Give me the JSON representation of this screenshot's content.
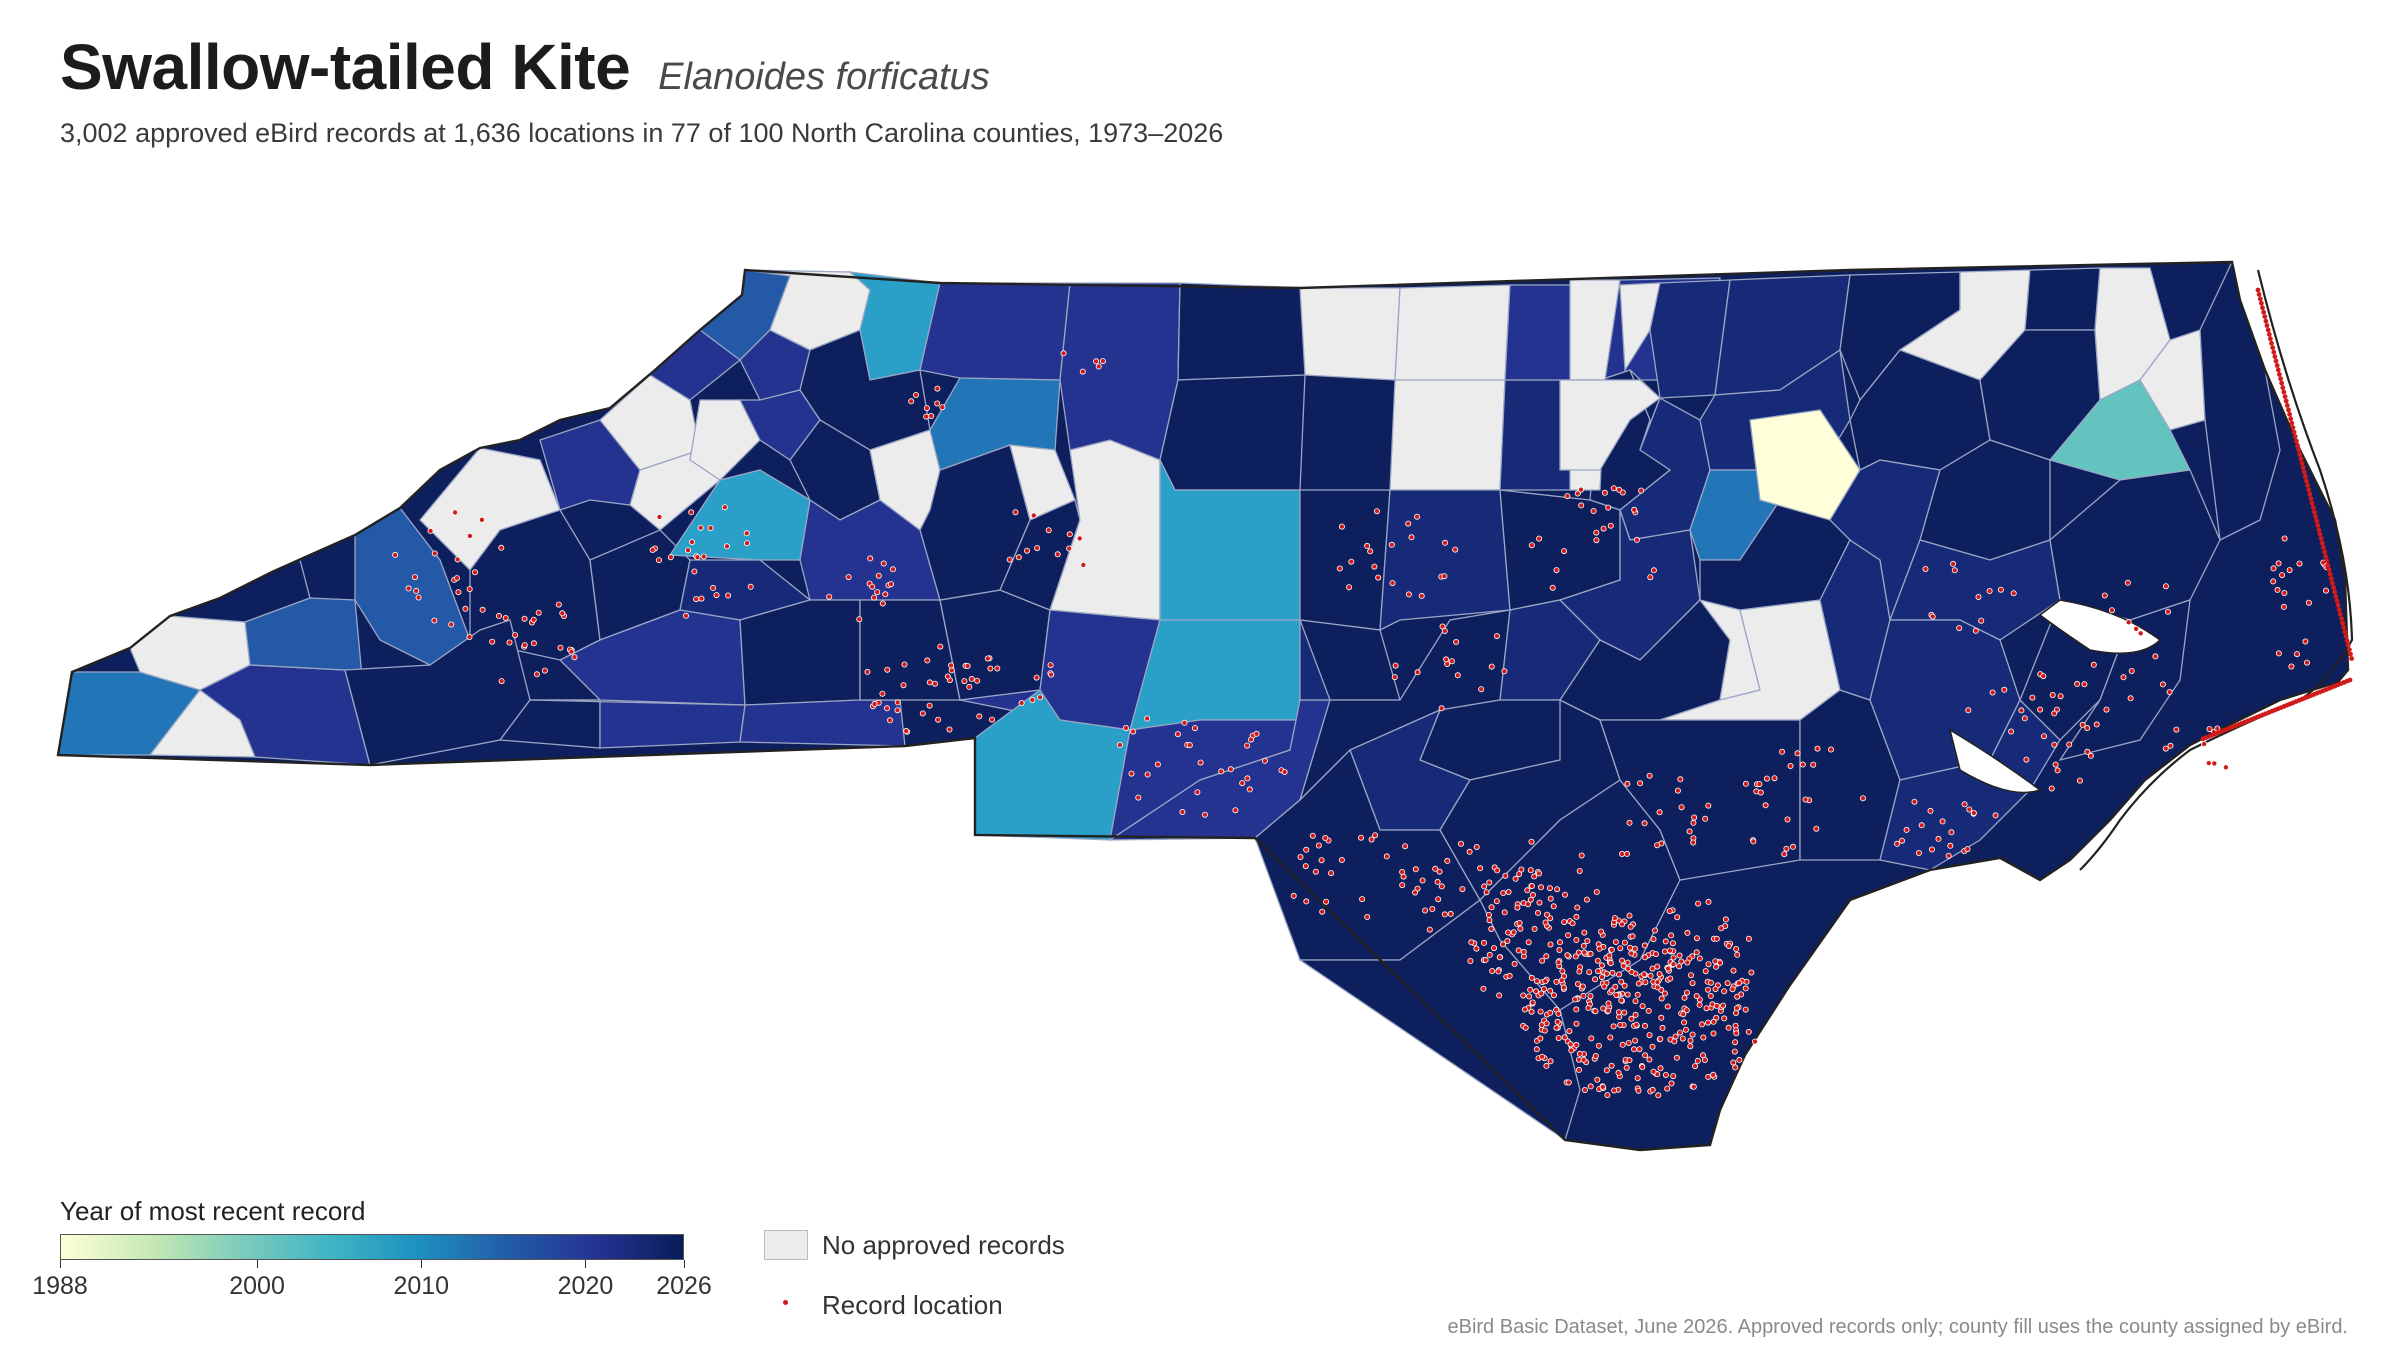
{
  "header": {
    "title": "Swallow-tailed Kite",
    "scientific_name": "Elanoides forficatus",
    "subtitle": "3,002 approved eBird records at 1,636 locations in 77 of 100 North Carolina counties, 1973–2026"
  },
  "legend": {
    "colorbar_title": "Year of most recent record",
    "year_min": 1988,
    "year_max": 2026,
    "ticks": [
      "1988",
      "2000",
      "2010",
      "2020",
      "2026"
    ],
    "no_records_label": "No approved records",
    "record_location_label": "Record location"
  },
  "source": "eBird Basic Dataset, June 2026. Approved records only; county fill uses the county assigned by eBird.",
  "colors": {
    "no_records": "#ececec",
    "record_dot": "#d11a1a",
    "county_border": "#9aa6c4",
    "state_outline": "#222222",
    "scale": [
      "#ffffd9",
      "#c7e9b4",
      "#7fcdbb",
      "#41b6c4",
      "#1d91c0",
      "#225ea8",
      "#253494",
      "#081d58"
    ]
  }
}
